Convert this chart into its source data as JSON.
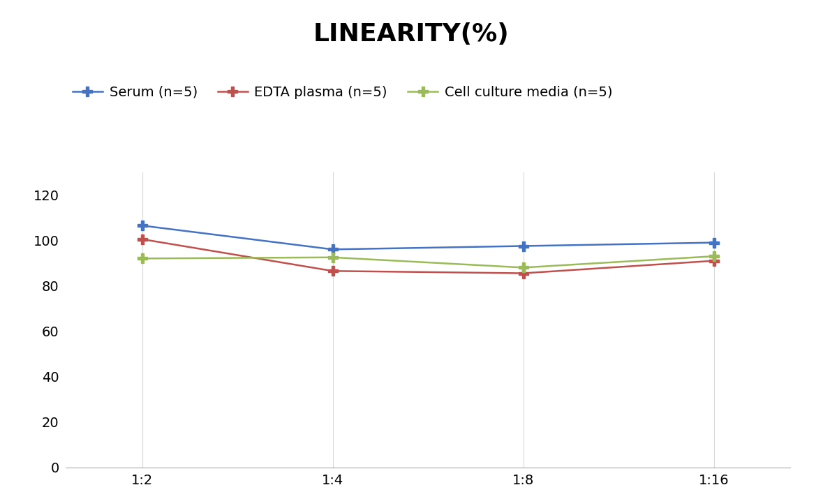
{
  "title": "LINEARITY(%)",
  "x_labels": [
    "1:2",
    "1:4",
    "1:8",
    "1:16"
  ],
  "x_positions": [
    0,
    1,
    2,
    3
  ],
  "series": [
    {
      "label": "Serum (n=5)",
      "values": [
        106.5,
        96.0,
        97.5,
        99.0
      ],
      "color": "#4472C4",
      "marker": "P",
      "linewidth": 1.8
    },
    {
      "label": "EDTA plasma (n=5)",
      "values": [
        100.5,
        86.5,
        85.5,
        91.0
      ],
      "color": "#C0504D",
      "marker": "P",
      "linewidth": 1.8
    },
    {
      "label": "Cell culture media (n=5)",
      "values": [
        92.0,
        92.5,
        88.0,
        93.0
      ],
      "color": "#9BBB59",
      "marker": "P",
      "linewidth": 1.8
    }
  ],
  "ylim": [
    0,
    130
  ],
  "yticks": [
    0,
    20,
    40,
    60,
    80,
    100,
    120
  ],
  "background_color": "#FFFFFF",
  "grid_color": "#D9D9D9",
  "title_fontsize": 26,
  "tick_fontsize": 14,
  "legend_fontsize": 14
}
